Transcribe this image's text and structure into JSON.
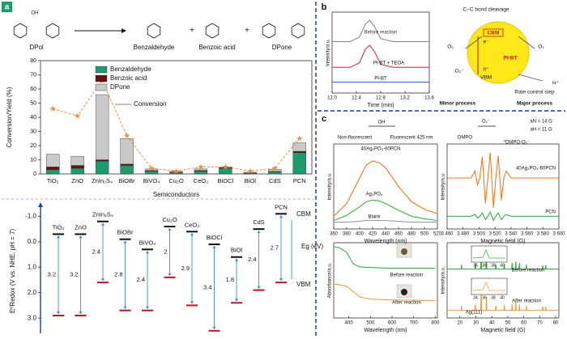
{
  "panel_labels": [
    "a",
    "b",
    "c"
  ],
  "scheme": {
    "reactant": "DPol",
    "oh": "OH",
    "plus": "+",
    "products": [
      "Benzaldehyde",
      "Benzoic acid",
      "DPone"
    ]
  },
  "chart_data": [
    {
      "type": "stacked_bar",
      "ylabel": "Conversion/Yield (%)",
      "xlabel": "Semiconductors",
      "categories": [
        "TiO₂",
        "ZnO",
        "ZnIn₂S₄",
        "BiOBr",
        "BiVO₄",
        "Cu₂O",
        "CeO₂",
        "BiOCl",
        "BiOl",
        "CdS",
        "PCN"
      ],
      "ylim": [
        0,
        80
      ],
      "yticks": [
        0,
        10,
        20,
        30,
        40,
        50,
        60,
        70,
        80
      ],
      "series": [
        {
          "name": "Benzaldehyde",
          "color": "#1e9a6c",
          "values": [
            3,
            4,
            9,
            6,
            2,
            1,
            2,
            4,
            0.5,
            1.5,
            15
          ]
        },
        {
          "name": "Benzoic acid",
          "color": "#6b1010",
          "values": [
            2,
            2,
            1,
            1,
            0.5,
            0.3,
            0.5,
            0.5,
            0.2,
            0.3,
            1
          ]
        },
        {
          "name": "DPone",
          "color": "#c9c9c9",
          "values": [
            9,
            6.5,
            46,
            18,
            1,
            0.5,
            1,
            0.5,
            0.5,
            1.5,
            6
          ]
        }
      ],
      "line_series": {
        "name": "Conversion",
        "color": "#f28c38",
        "values": [
          46,
          41,
          66,
          27,
          4,
          2,
          5,
          5,
          2,
          4,
          25
        ]
      }
    },
    {
      "type": "band",
      "ylabel": "E⁰Redox (V vs. NHE, pH = 7)",
      "categories": [
        "TiO₂",
        "ZnO",
        "ZnIn₂S₄",
        "BiOBr",
        "BiVO₄",
        "Cu₂O",
        "CeO₂",
        "BiOCl",
        "BiOl",
        "CdS",
        "PCN"
      ],
      "ylim": [
        -1.3,
        3.6
      ],
      "yticks": [
        {
          "value": -1,
          "label": "-1.0"
        },
        {
          "value": 0,
          "label": "0.0"
        },
        {
          "value": 1,
          "label": "1.0"
        },
        {
          "value": 2,
          "label": "2.0"
        },
        {
          "value": 3,
          "label": "3.0"
        }
      ],
      "cb": [
        -0.3,
        -0.3,
        -0.8,
        -0.1,
        0.3,
        -0.6,
        -0.4,
        0.1,
        0.6,
        -0.5,
        -1.1
      ],
      "vb": [
        2.9,
        2.9,
        1.6,
        2.7,
        2.7,
        1.4,
        2.5,
        3.5,
        2.4,
        1.9,
        1.6
      ],
      "gaps": [
        3.2,
        3.2,
        2.4,
        2.8,
        2.4,
        2,
        2.9,
        3.4,
        1.8,
        2.4,
        2.7
      ],
      "cbm_label": "CBM",
      "vbm_label": "VBM",
      "eg_label": "Eg (eV)",
      "cb_color": "#111111",
      "vb_color": "#c0141c",
      "arrow_color": "#3a8fd8"
    },
    {
      "type": "line",
      "xlabel": "Time (min)",
      "ylabel": "Intensity/a.u.",
      "xlim": [
        12,
        13.6
      ],
      "xticks": [
        {
          "value": 12,
          "label": "12.0"
        },
        12.4,
        12.8,
        13.2,
        {
          "value": 13.6,
          "label": "13.6"
        }
      ],
      "ylim": [
        0,
        11
      ],
      "series": [
        {
          "name": "Before reaction",
          "color": "#8a8a8a",
          "x": [
            12,
            12.3,
            12.45,
            12.55,
            12.62,
            12.7,
            12.8,
            13,
            13.6
          ],
          "values": [
            7,
            7,
            7.6,
            9.4,
            9.9,
            9,
            7.4,
            7,
            7
          ]
        },
        {
          "name": "PI-BT + TEOA",
          "color": "#d9363e",
          "x": [
            12,
            12.3,
            12.45,
            12.55,
            12.62,
            12.7,
            12.8,
            13,
            13.6
          ],
          "values": [
            3.5,
            3.5,
            4.1,
            6,
            6.5,
            5.6,
            3.9,
            3.5,
            3.5
          ]
        },
        {
          "name": "PI-BT",
          "color": "#3a6fd8",
          "x": [
            12,
            12.6,
            13.6
          ],
          "values": [
            1.5,
            1.5,
            1.5
          ]
        }
      ]
    },
    {
      "type": "line",
      "xlabel": "Wavelength (nm)",
      "ylabel": "Intensity/a.u.",
      "xlim": [
        360,
        520
      ],
      "xticks": [
        360,
        380,
        400,
        420,
        440,
        460,
        480,
        500,
        520
      ],
      "ylim": [
        0,
        10
      ],
      "annotations": [
        "Non-fluorescent",
        "Fluorescent 425 nm",
        "OH"
      ],
      "series": [
        {
          "name": "40Ag₃PO₄-60PCN",
          "color": "#f07a22",
          "x": [
            360,
            380,
            400,
            410,
            420,
            430,
            440,
            460,
            480,
            500,
            520
          ],
          "values": [
            1.5,
            3,
            6,
            7.5,
            8,
            7.8,
            7.2,
            5,
            3.2,
            2.3,
            1.8
          ]
        },
        {
          "name": "Ag₃PO₄",
          "color": "#3fae49",
          "x": [
            360,
            380,
            400,
            410,
            420,
            430,
            440,
            460,
            480,
            500,
            520
          ],
          "values": [
            1,
            1.6,
            2.6,
            3.2,
            3.4,
            3.3,
            3,
            2.2,
            1.5,
            1.2,
            1
          ]
        },
        {
          "name": "Blank",
          "color": "#9a9a9a",
          "x": [
            360,
            380,
            400,
            410,
            420,
            430,
            440,
            460,
            480,
            500,
            520
          ],
          "values": [
            0.8,
            0.8,
            0.9,
            1,
            1,
            1,
            1,
            0.9,
            0.8,
            0.8,
            0.8
          ]
        }
      ]
    },
    {
      "type": "line",
      "xlabel": "Magnetic field (G)",
      "ylabel": "Intensity/a.u.",
      "xlim": [
        3460,
        3600
      ],
      "xticks": [
        {
          "value": 3460,
          "label": "3 460"
        },
        {
          "value": 3480,
          "label": "3 480"
        },
        {
          "value": 3500,
          "label": "3 500"
        },
        {
          "value": 3520,
          "label": "3 520"
        },
        {
          "value": 3540,
          "label": "3 540"
        },
        {
          "value": 3560,
          "label": "3 560"
        },
        {
          "value": 3580,
          "label": "3 580"
        },
        {
          "value": 3600,
          "label": "3 600"
        }
      ],
      "ylim": [
        0,
        10
      ],
      "annotations": [
        "DMPO",
        "*DMPO-O₂⁻",
        "aN = 14 G",
        "aH = 11 G",
        "O₂⁻"
      ],
      "series": [
        {
          "name": "40Ag₃PO₄-60PCN",
          "color": "#f07a22",
          "x": [
            3460,
            3490,
            3495,
            3498,
            3501,
            3504,
            3508,
            3511,
            3514,
            3518,
            3521,
            3524,
            3528,
            3531,
            3534,
            3540,
            3600
          ],
          "values": [
            6,
            6,
            6.8,
            5.2,
            6,
            8.5,
            3,
            6,
            9,
            2.5,
            6,
            8.6,
            3.4,
            6,
            6.8,
            6,
            6
          ]
        },
        {
          "name": "PCN",
          "color": "#3fae49",
          "x": [
            3460,
            3490,
            3495,
            3498,
            3501,
            3504,
            3508,
            3511,
            3514,
            3518,
            3521,
            3524,
            3528,
            3531,
            3534,
            3540,
            3600
          ],
          "values": [
            1.5,
            1.5,
            1.7,
            1.3,
            1.5,
            1.9,
            1.1,
            1.5,
            2,
            1,
            1.5,
            1.9,
            1.1,
            1.5,
            1.7,
            1.5,
            1.5
          ]
        }
      ]
    },
    {
      "type": "line",
      "xlabel": "Wavelength (nm)",
      "ylabel": "Absorbance/a.u.",
      "xlim": [
        330,
        810
      ],
      "xticks": [
        400,
        500,
        600,
        700,
        800
      ],
      "ylim": [
        0,
        10
      ],
      "series": [
        {
          "name": "Before reaction",
          "color": "#3fae49",
          "x": [
            330,
            360,
            390,
            420,
            450,
            500,
            600,
            800
          ],
          "values": [
            9.5,
            9.3,
            8.7,
            7.2,
            6.8,
            6.7,
            6.6,
            6.6
          ]
        },
        {
          "name": "After reaction",
          "color": "#e8a24a",
          "x": [
            330,
            360,
            390,
            420,
            450,
            500,
            600,
            800
          ],
          "values": [
            4.5,
            4.4,
            4.2,
            3.5,
            2.8,
            2.5,
            2.4,
            2.3
          ]
        }
      ]
    },
    {
      "type": "line",
      "xlabel": "Magnetic field (G)",
      "ylabel": "Intensity/a.u.",
      "xlim": [
        12,
        82
      ],
      "xticks": [
        20,
        30,
        40,
        50,
        60,
        70,
        80
      ],
      "ylim": [
        0,
        10
      ],
      "annotations": [
        "Ag(111)"
      ],
      "inset_ticks": [
        34,
        36,
        38,
        40
      ],
      "series": [
        {
          "name": "Before reaction",
          "color": "#3fae49",
          "x": [
            12,
            20.7,
            21,
            21.3,
            29.4,
            29.7,
            30,
            33,
            33.3,
            33.6,
            36.3,
            36.6,
            36.9,
            42.2,
            42.5,
            42.8,
            47.5,
            47.8,
            48.1,
            52.4,
            52.7,
            53,
            54.7,
            55,
            55.3,
            57,
            57.3,
            57.6,
            61.3,
            61.6,
            61.9,
            71.6,
            71.9,
            72.2,
            73.5,
            73.8,
            74.1,
            82
          ],
          "values": [
            6.5,
            6.5,
            7.1,
            6.5,
            6.5,
            7.3,
            6.5,
            6.5,
            9,
            6.5,
            6.5,
            8,
            6.5,
            6.5,
            7.1,
            6.5,
            6.5,
            7.2,
            6.5,
            6.5,
            7.3,
            6.5,
            6.5,
            7.5,
            6.5,
            6.5,
            7.3,
            6.5,
            6.5,
            7.1,
            6.5,
            6.5,
            7,
            6.5,
            6.5,
            7,
            6.5,
            6.5
          ]
        },
        {
          "name": "After reaction",
          "color": "#e8a24a",
          "x": [
            12,
            20.7,
            21,
            21.3,
            29.4,
            29.7,
            30,
            33,
            33.3,
            33.6,
            36.3,
            36.6,
            36.9,
            42.2,
            42.5,
            42.8,
            47.5,
            47.8,
            48.1,
            52.4,
            52.7,
            53,
            54.7,
            55,
            55.3,
            57,
            57.3,
            57.6,
            61.3,
            61.6,
            61.9,
            71.6,
            71.9,
            72.2,
            73.5,
            73.8,
            74.1,
            82
          ],
          "values": [
            1,
            1,
            1.6,
            1,
            1,
            1.8,
            1,
            1,
            4.5,
            1,
            1,
            2.8,
            1,
            1,
            1.6,
            1,
            1,
            1.7,
            1,
            1,
            1.8,
            1,
            1,
            2.2,
            1,
            1,
            1.8,
            1,
            1,
            1.6,
            1,
            1,
            1.5,
            1,
            1,
            1.5,
            1,
            1
          ]
        }
      ]
    }
  ],
  "mechanism": {
    "labels": [
      "C−C bond cleavage",
      "CBM",
      "VBM",
      "PI-BT",
      "O₂",
      "O₂",
      "·O₂⁻",
      "e⁻",
      "h⁺",
      "H⁺",
      "Rate control step",
      "Minor process",
      "Major process"
    ]
  }
}
